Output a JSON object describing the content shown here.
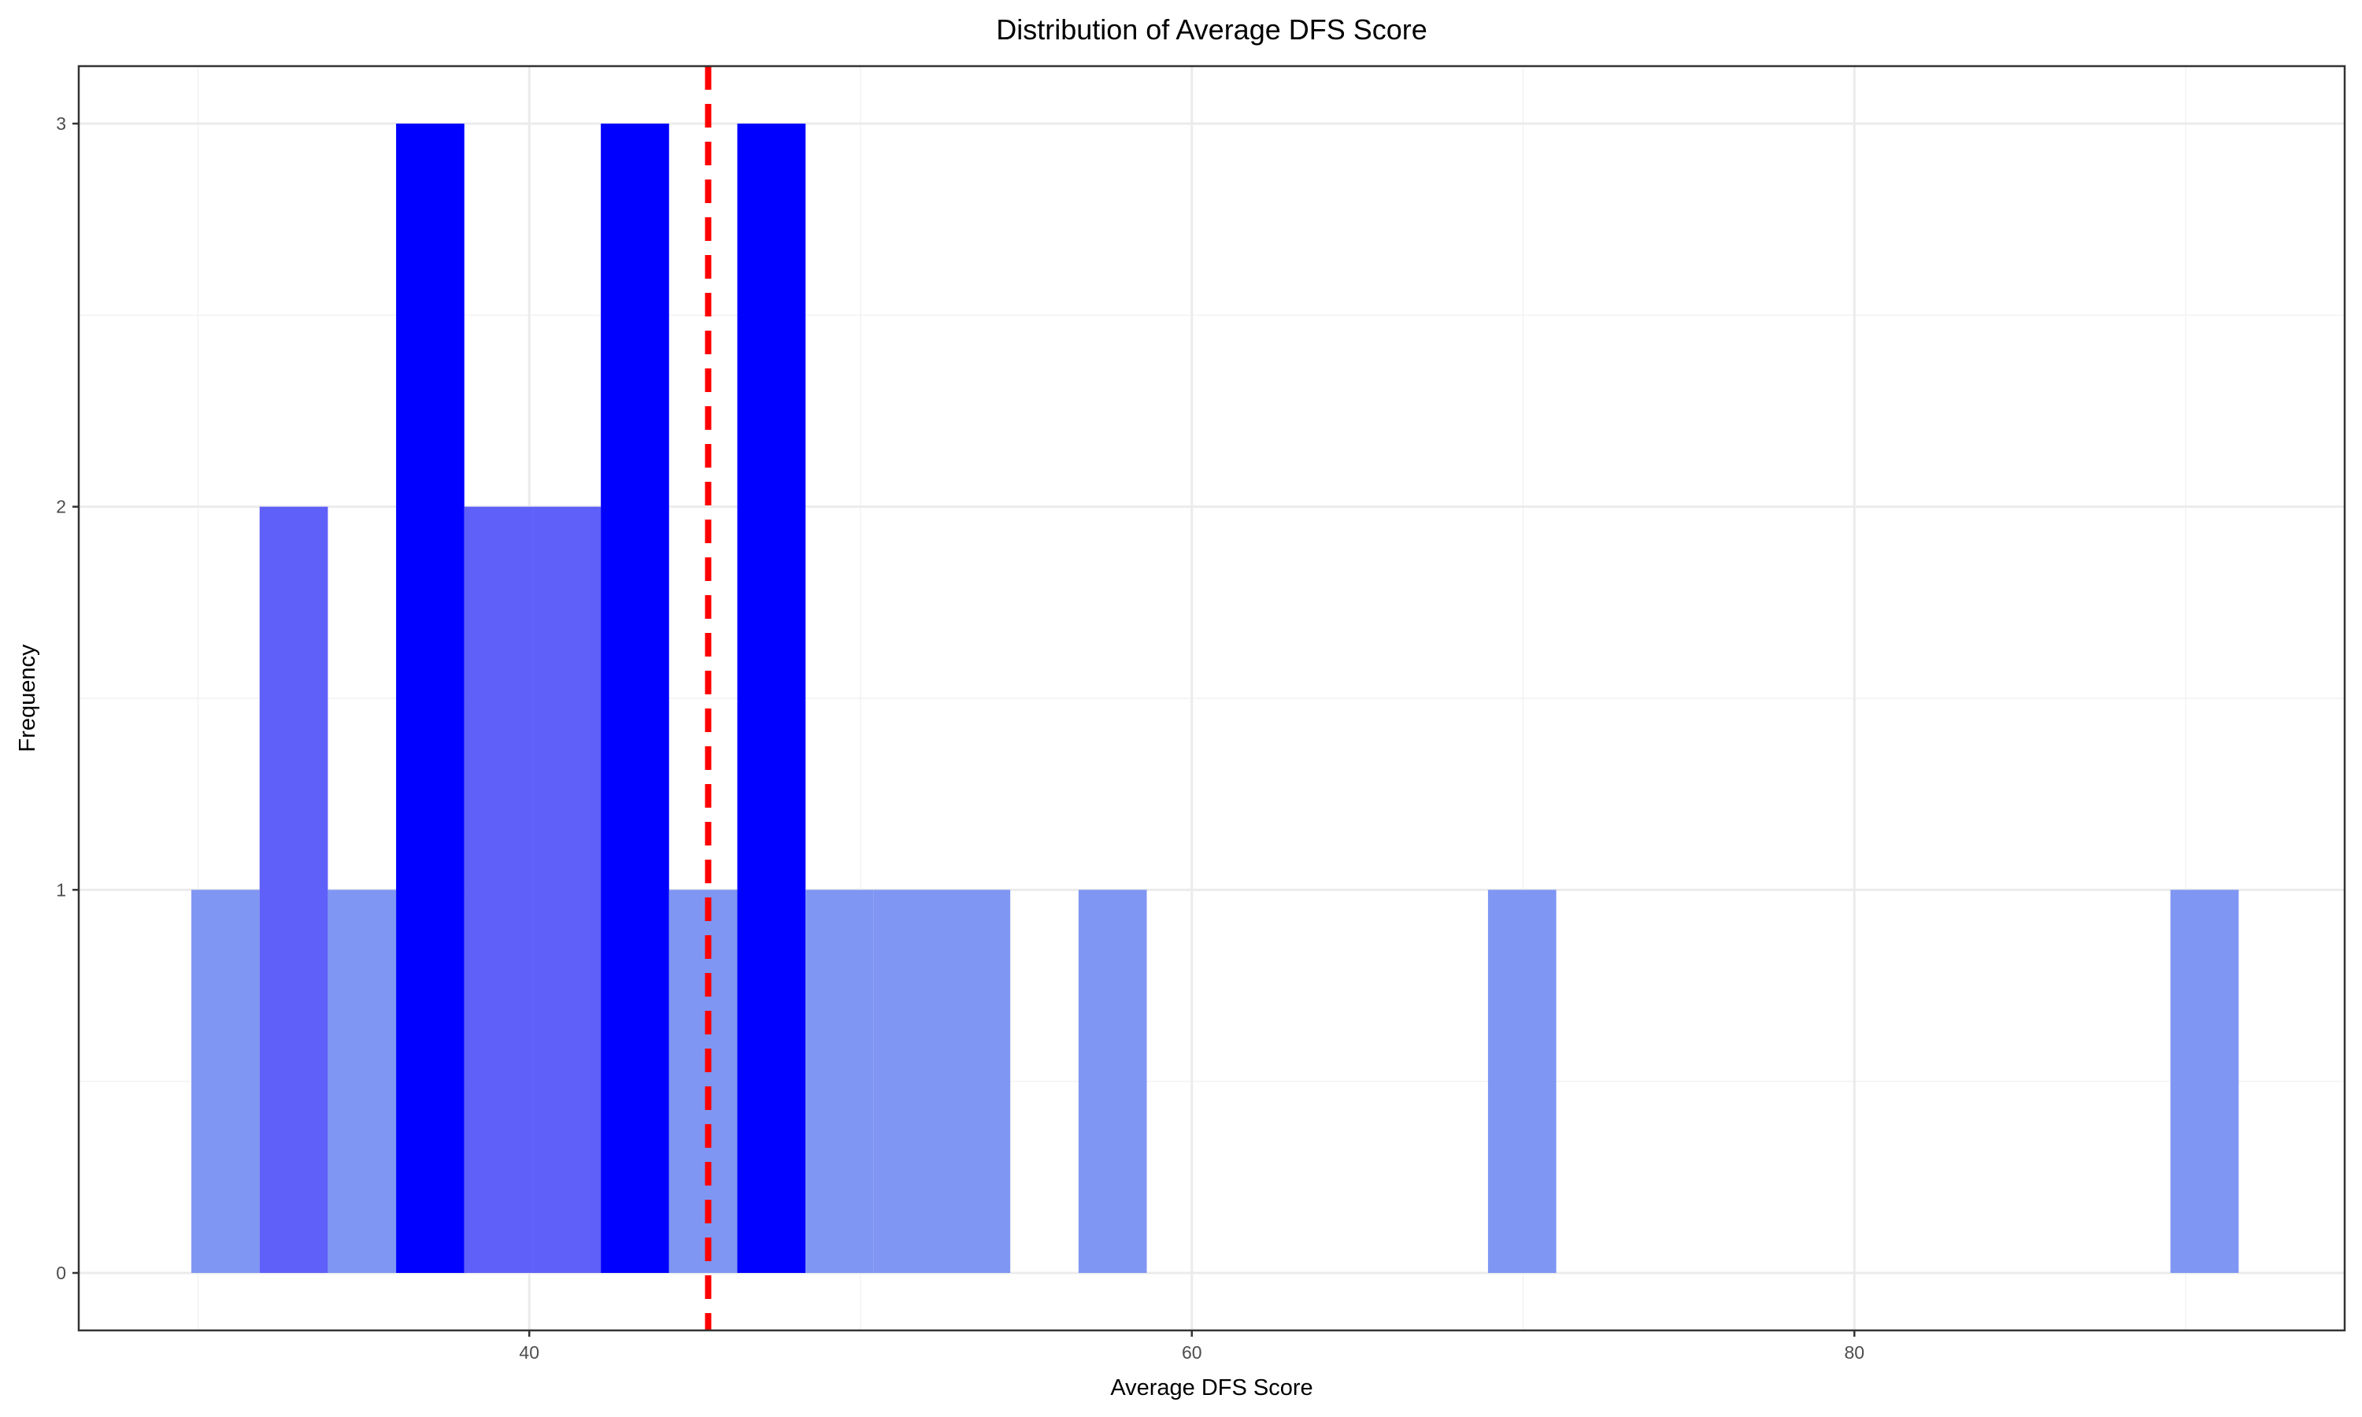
{
  "chart_data": {
    "type": "histogram",
    "title": "Distribution of Average DFS Score",
    "xlabel": "Average DFS Score",
    "ylabel": "Frequency",
    "xlim": [
      26.4,
      94.8
    ],
    "ylim": [
      -0.15,
      3.15
    ],
    "x_ticks": [
      40,
      60,
      80
    ],
    "x_tick_labels": [
      "40",
      "60",
      "80"
    ],
    "y_ticks": [
      0,
      1,
      2,
      3
    ],
    "y_tick_labels": [
      "0",
      "1",
      "2",
      "3"
    ],
    "x_minor_ticks": [
      30,
      50,
      70,
      90
    ],
    "y_minor_ticks": [
      0.5,
      1.5,
      2.5
    ],
    "bin_width": 2.06,
    "bins": [
      {
        "x0": 29.8,
        "count": 1
      },
      {
        "x0": 31.86,
        "count": 2
      },
      {
        "x0": 33.92,
        "count": 1
      },
      {
        "x0": 35.98,
        "count": 3
      },
      {
        "x0": 38.04,
        "count": 2
      },
      {
        "x0": 40.1,
        "count": 2
      },
      {
        "x0": 42.16,
        "count": 3
      },
      {
        "x0": 44.22,
        "count": 1
      },
      {
        "x0": 46.28,
        "count": 3
      },
      {
        "x0": 48.34,
        "count": 1
      },
      {
        "x0": 50.4,
        "count": 1
      },
      {
        "x0": 52.46,
        "count": 1
      },
      {
        "x0": 56.58,
        "count": 1
      },
      {
        "x0": 68.94,
        "count": 1
      },
      {
        "x0": 89.54,
        "count": 1
      }
    ],
    "fill_colors": {
      "1": "#7f96f2",
      "2": "#5f5ffa",
      "3": "#0000ff"
    },
    "reference_line": {
      "x": 45.4,
      "color": "#ff0000",
      "style": "dashed"
    }
  }
}
